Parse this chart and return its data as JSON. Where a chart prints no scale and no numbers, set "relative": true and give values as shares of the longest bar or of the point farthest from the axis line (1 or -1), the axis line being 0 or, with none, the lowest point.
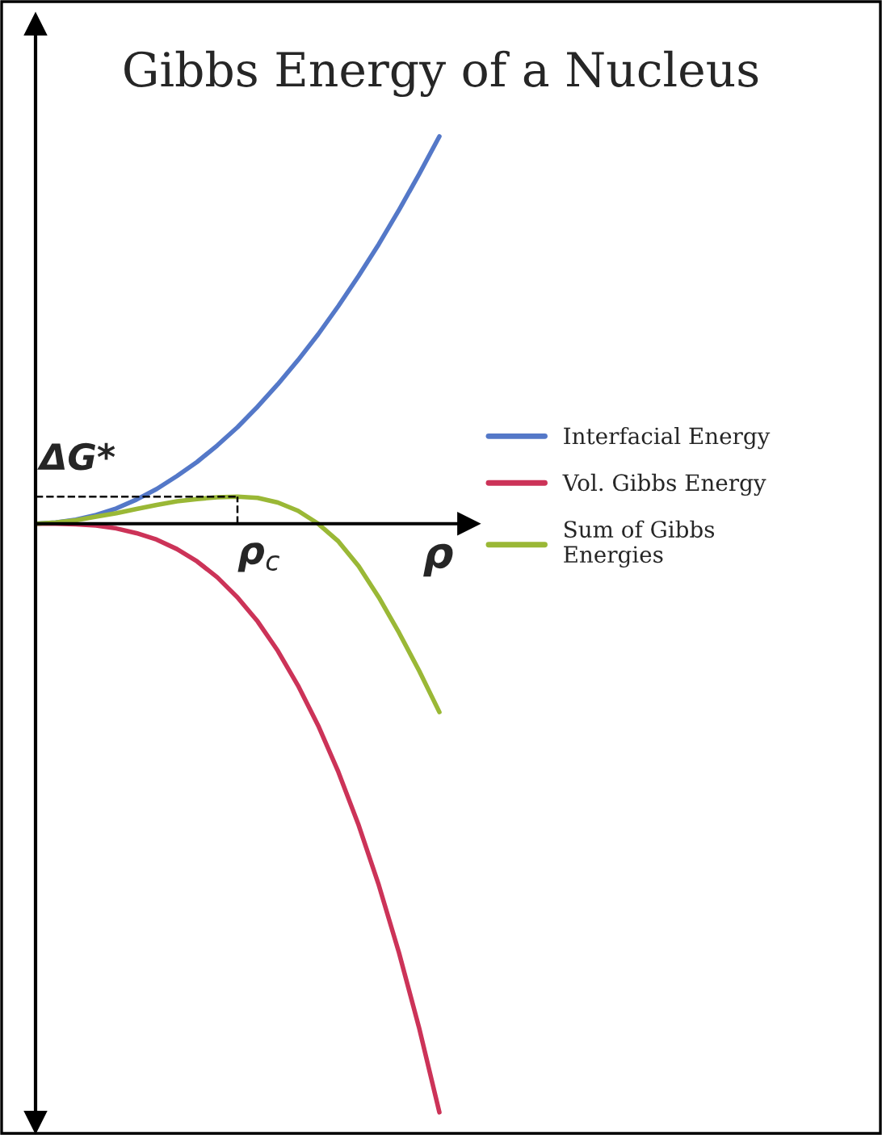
{
  "chart_data": {
    "type": "line",
    "title": "Gibbs Energy of a Nucleus",
    "xlabel": "ρ",
    "relative": true,
    "categories": [
      null,
      null,
      null,
      null,
      null,
      null,
      null,
      null,
      null,
      null,
      null,
      null,
      null,
      null,
      null,
      null,
      null,
      null,
      null,
      null,
      null
    ],
    "series": [
      {
        "name": "Interfacial Energy",
        "color": "#5478c8",
        "values": [
          0,
          0.002,
          0.007,
          0.015,
          0.026,
          0.041,
          0.059,
          0.081,
          0.105,
          0.133,
          0.164,
          0.199,
          0.237,
          0.278,
          0.322,
          0.37,
          0.421,
          0.475,
          0.533,
          0.594,
          0.658
        ]
      },
      {
        "name": "Vol. Gibbs Energy",
        "color": "#cc3358",
        "values": [
          0,
          0,
          -0.001,
          -0.003,
          -0.008,
          -0.016,
          -0.027,
          -0.043,
          -0.064,
          -0.091,
          -0.125,
          -0.166,
          -0.216,
          -0.275,
          -0.343,
          -0.422,
          -0.512,
          -0.614,
          -0.729,
          -0.857,
          -1
        ]
      },
      {
        "name": "Sum of Gibbs\nEnergies",
        "color": "#9ab836",
        "values": [
          0,
          0.002,
          0.006,
          0.012,
          0.018,
          0.025,
          0.032,
          0.038,
          0.042,
          0.045,
          0.046,
          0.044,
          0.036,
          0.022,
          0,
          -0.03,
          -0.072,
          -0.125,
          -0.185,
          -0.25,
          -0.32
        ]
      }
    ],
    "ref_lines": [
      {
        "axis": "y",
        "value": 0.046,
        "label": "ΔG*",
        "line_style": "dashed",
        "color": "#000000"
      }
    ],
    "annotations": [
      "ρ$_{c}$"
    ],
    "legend": "right",
    "marker": "none",
    "line_style": "solid"
  }
}
